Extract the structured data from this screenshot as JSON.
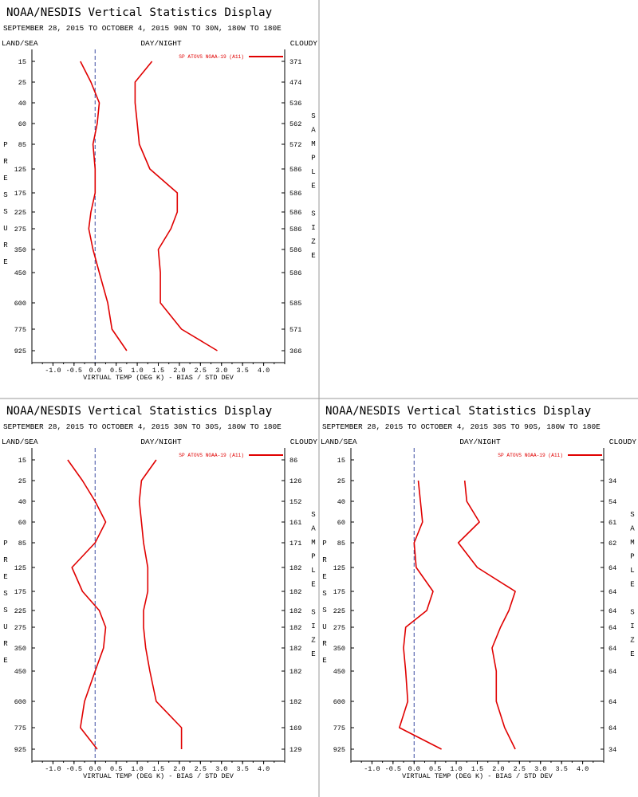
{
  "colors": {
    "series": "#e00000",
    "axis": "#000000",
    "zero_line": "#3a4aa0",
    "divider": "#9a9a9a"
  },
  "chart_data": [
    {
      "type": "line",
      "title": "NOAA/NESDIS Vertical Statistics Display",
      "subtitle": "SEPTEMBER 28, 2015 TO OCTOBER 4, 2015 90N TO 30N, 180W TO 180E",
      "header_left": "LAND/SEA",
      "header_center": "DAY/NIGHT",
      "header_right": "CLOUDY",
      "ylabel": "PRESSURE",
      "y2label": "SAMPLE SIZE",
      "xlabel": "VIRTUAL TEMP (DEG K) - BIAS / STD DEV",
      "legend": "SP ATOVS NOAA-19 (A11)",
      "legend_position": "top-right",
      "xlim": [
        -1.5,
        4.5
      ],
      "xticks": [
        "-1.0",
        "-0.5",
        "0.0",
        "0.5",
        "1.0",
        "1.5",
        "2.0",
        "2.5",
        "3.0",
        "3.5",
        "4.0"
      ],
      "pressure": [
        "15",
        "25",
        "40",
        "60",
        "85",
        "125",
        "175",
        "225",
        "275",
        "350",
        "450",
        "600",
        "775",
        "925"
      ],
      "sample_size": [
        "371",
        "474",
        "536",
        "562",
        "572",
        "586",
        "586",
        "586",
        "586",
        "586",
        "586",
        "585",
        "571",
        "366"
      ],
      "series": [
        {
          "values": [
            -0.35,
            -0.1,
            0.1,
            0.05,
            -0.05,
            0.0,
            0.0,
            -0.1,
            -0.15,
            -0.05,
            0.1,
            0.3,
            0.4,
            0.75
          ]
        },
        {
          "values": [
            1.35,
            0.95,
            0.95,
            1.0,
            1.05,
            1.3,
            1.95,
            1.95,
            1.8,
            1.5,
            1.55,
            1.55,
            2.05,
            2.9
          ]
        }
      ]
    },
    {
      "type": "line",
      "title": "NOAA/NESDIS Vertical Statistics Display",
      "subtitle": "SEPTEMBER 28, 2015 TO OCTOBER 4, 2015 30N TO 30S, 180W TO 180E",
      "header_left": "LAND/SEA",
      "header_center": "DAY/NIGHT",
      "header_right": "CLOUDY",
      "ylabel": "PRESSURE",
      "y2label": "SAMPLE SIZE",
      "xlabel": "VIRTUAL TEMP (DEG K) - BIAS / STD DEV",
      "legend": "SP ATOVS NOAA-19 (A11)",
      "legend_position": "top-right",
      "xlim": [
        -1.5,
        4.5
      ],
      "xticks": [
        "-1.0",
        "-0.5",
        "0.0",
        "0.5",
        "1.0",
        "1.5",
        "2.0",
        "2.5",
        "3.0",
        "3.5",
        "4.0"
      ],
      "pressure": [
        "15",
        "25",
        "40",
        "60",
        "85",
        "125",
        "175",
        "225",
        "275",
        "350",
        "450",
        "600",
        "775",
        "925"
      ],
      "sample_size": [
        "86",
        "126",
        "152",
        "161",
        "171",
        "182",
        "182",
        "182",
        "182",
        "182",
        "182",
        "182",
        "169",
        "129"
      ],
      "series": [
        {
          "values": [
            -0.65,
            -0.3,
            0.0,
            0.25,
            0.0,
            -0.55,
            -0.3,
            0.1,
            0.25,
            0.2,
            0.0,
            -0.25,
            -0.35,
            0.05
          ]
        },
        {
          "values": [
            1.45,
            1.1,
            1.05,
            1.1,
            1.15,
            1.25,
            1.25,
            1.15,
            1.15,
            1.2,
            1.3,
            1.45,
            2.05,
            2.05
          ]
        }
      ]
    },
    {
      "type": "line",
      "title": "NOAA/NESDIS Vertical Statistics Display",
      "subtitle": "SEPTEMBER 28, 2015 TO OCTOBER 4, 2015 30S TO 90S, 180W TO 180E",
      "header_left": "LAND/SEA",
      "header_center": "DAY/NIGHT",
      "header_right": "CLOUDY",
      "ylabel": "PRESSURE",
      "y2label": "SAMPLE SIZE",
      "xlabel": "VIRTUAL TEMP (DEG K) - BIAS / STD DEV",
      "legend": "SP ATOVS NOAA-19 (A11)",
      "legend_position": "top-right",
      "xlim": [
        -1.5,
        4.5
      ],
      "xticks": [
        "-1.0",
        "-0.5",
        "0.0",
        "0.5",
        "1.0",
        "1.5",
        "2.0",
        "2.5",
        "3.0",
        "3.5",
        "4.0"
      ],
      "pressure": [
        "15",
        "25",
        "40",
        "60",
        "85",
        "125",
        "175",
        "225",
        "275",
        "350",
        "450",
        "600",
        "775",
        "925"
      ],
      "sample_size": [
        "",
        "34",
        "54",
        "61",
        "62",
        "64",
        "64",
        "64",
        "64",
        "64",
        "64",
        "64",
        "64",
        "34"
      ],
      "series": [
        {
          "start_level": 1,
          "values": [
            0.1,
            0.15,
            0.2,
            0.0,
            0.05,
            0.45,
            0.3,
            -0.2,
            -0.25,
            -0.2,
            -0.15,
            -0.35,
            0.65
          ]
        },
        {
          "start_level": 1,
          "values": [
            1.2,
            1.25,
            1.55,
            1.05,
            1.5,
            2.4,
            2.25,
            2.05,
            1.85,
            1.95,
            1.95,
            2.15,
            2.4
          ]
        }
      ]
    }
  ]
}
